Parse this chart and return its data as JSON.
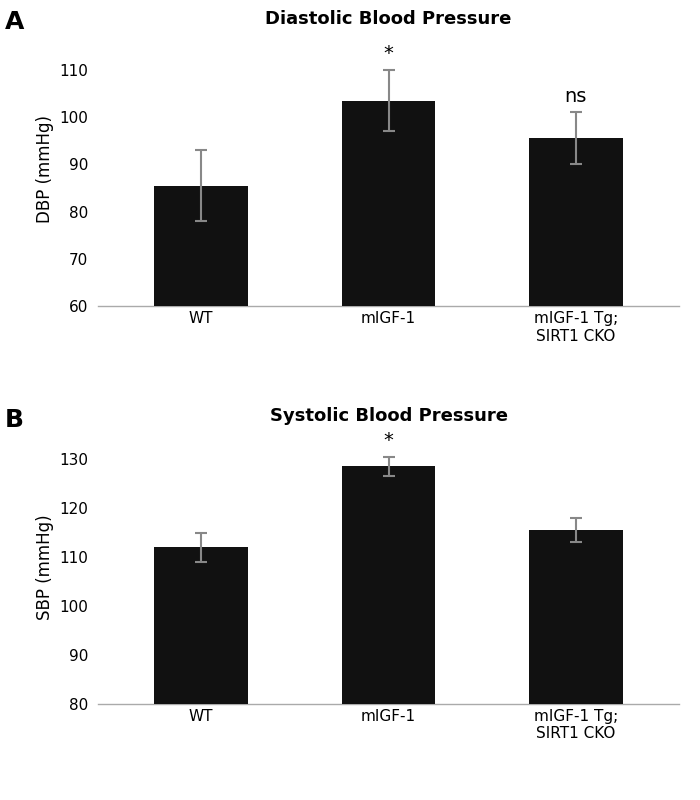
{
  "panel_A": {
    "title": "Diastolic Blood Pressure",
    "ylabel": "DBP (mmHg)",
    "categories": [
      "WT",
      "mIGF-1",
      "mIGF-1 Tg;\nSIRT1 CKO"
    ],
    "values": [
      85.5,
      103.5,
      95.5
    ],
    "errors": [
      7.5,
      6.5,
      5.5
    ],
    "ylim": [
      60,
      118
    ],
    "yticks": [
      60,
      70,
      80,
      90,
      100,
      110
    ],
    "bar_color": "#111111",
    "error_color": "#888888",
    "annotations": [
      "",
      "*",
      "ns"
    ],
    "label": "A"
  },
  "panel_B": {
    "title": "Systolic Blood Pressure",
    "ylabel": "SBP (mmHg)",
    "categories": [
      "WT",
      "mIGF-1",
      "mIGF-1 Tg;\nSIRT1 CKO"
    ],
    "values": [
      112.0,
      128.5,
      115.5
    ],
    "errors": [
      3.0,
      2.0,
      2.5
    ],
    "ylim": [
      80,
      136
    ],
    "yticks": [
      80,
      90,
      100,
      110,
      120,
      130
    ],
    "bar_color": "#111111",
    "error_color": "#888888",
    "annotations": [
      "",
      "*",
      ""
    ],
    "label": "B"
  },
  "background_color": "#ffffff",
  "title_fontsize": 13,
  "label_fontsize": 12,
  "tick_fontsize": 11,
  "annotation_fontsize": 14,
  "bar_width": 0.5
}
